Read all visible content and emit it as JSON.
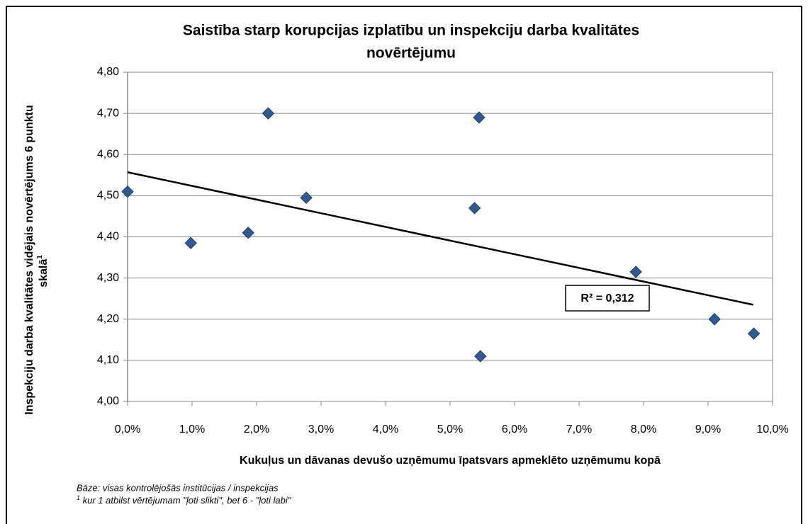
{
  "chart_data": {
    "type": "scatter",
    "title_lines": [
      "Saistība starp korupcijas izplatību un inspekciju darba kvalitātes",
      "novērtējumu"
    ],
    "x_label": "Kukuļus un dāvanas devušo uzņēmumu īpatsvars apmeklēto uzņēmumu kopā",
    "y_label": "Inspekciju darba kvalitātes vidējais novērtējums 6 punktu",
    "y_label_line2": "skalā",
    "y_label_sup": "1",
    "x": [
      0.0,
      0.98,
      1.87,
      2.18,
      2.77,
      5.38,
      5.45,
      5.47,
      7.88,
      9.1,
      9.71
    ],
    "values": [
      4.51,
      4.385,
      4.41,
      4.7,
      4.495,
      4.47,
      4.69,
      4.11,
      4.315,
      4.2,
      4.165
    ],
    "color": "#2f5a93",
    "xlim": [
      0,
      10
    ],
    "ylim": [
      4.0,
      4.8
    ],
    "xticks": [
      {
        "value": 0,
        "label": "0,0%"
      },
      {
        "value": 1,
        "label": "1,0%"
      },
      {
        "value": 2,
        "label": "2,0%"
      },
      {
        "value": 3,
        "label": "3,0%"
      },
      {
        "value": 4,
        "label": "4,0%"
      },
      {
        "value": 5,
        "label": "5,0%"
      },
      {
        "value": 6,
        "label": "6,0%"
      },
      {
        "value": 7,
        "label": "7,0%"
      },
      {
        "value": 8,
        "label": "8,0%"
      },
      {
        "value": 9,
        "label": "9,0%"
      },
      {
        "value": 10,
        "label": "10,0%"
      }
    ],
    "yticks": [
      {
        "value": 4.0,
        "label": "4,00"
      },
      {
        "value": 4.1,
        "label": "4,10"
      },
      {
        "value": 4.2,
        "label": "4,20"
      },
      {
        "value": 4.3,
        "label": "4,30"
      },
      {
        "value": 4.4,
        "label": "4,40"
      },
      {
        "value": 4.5,
        "label": "4,50"
      },
      {
        "value": 4.6,
        "label": "4,60"
      },
      {
        "value": 4.7,
        "label": "4,70"
      },
      {
        "value": 4.8,
        "label": "4,80"
      }
    ],
    "grid": true,
    "trendline": {
      "x": [
        0,
        9.7
      ],
      "y": [
        4.557,
        4.235
      ]
    },
    "r2_label": "R² = 0,312",
    "footnote_base": "Bāze: visas kontrolējošās institūcijas / inspekcijas",
    "footnote_sup": "1",
    "footnote_text": " kur  1 atbilst vērtējumam \"ļoti slikti\", bet 6 - \"ļoti labi\""
  }
}
